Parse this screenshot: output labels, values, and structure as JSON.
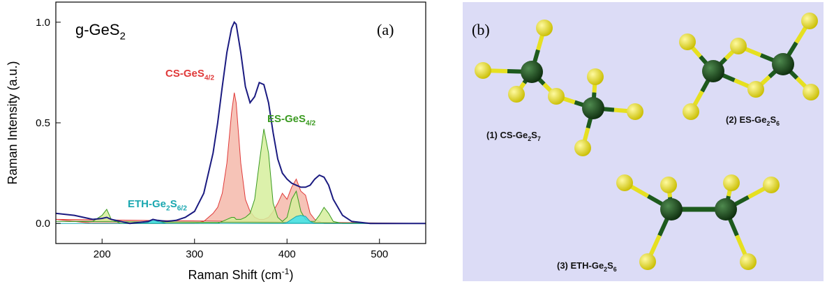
{
  "chart_data": {
    "type": "line",
    "panel_label": "(a)",
    "title": [
      "g-GeS",
      "2"
    ],
    "x_label": [
      "Raman Shift (cm",
      "-1",
      ")"
    ],
    "y_label": "Raman Intensity (a.u.)",
    "xlim": [
      150,
      550
    ],
    "xticks": [
      200,
      300,
      400,
      500
    ],
    "ylim": [
      -0.1,
      1.1
    ],
    "yticks": [
      {
        "value": 0,
        "label": "0.0"
      },
      {
        "value": 0.5,
        "label": "0.5"
      },
      {
        "value": 1,
        "label": "1.0"
      }
    ],
    "x": [
      150,
      170,
      190,
      200,
      205,
      210,
      220,
      230,
      240,
      250,
      255,
      260,
      270,
      280,
      290,
      300,
      310,
      320,
      325,
      330,
      335,
      340,
      343,
      345,
      350,
      355,
      360,
      365,
      370,
      375,
      380,
      385,
      390,
      395,
      400,
      405,
      410,
      415,
      420,
      425,
      430,
      435,
      440,
      445,
      450,
      460,
      470,
      480,
      490,
      500,
      520,
      550
    ],
    "series": [
      {
        "label": [
          "CS-GeS",
          "4/2"
        ],
        "color": "#e03a3a",
        "fill": "#f5b8aa",
        "values": [
          0.02,
          0.01,
          0,
          0,
          0,
          0,
          0,
          0,
          0,
          0,
          0,
          0,
          0,
          0,
          0,
          0,
          0.01,
          0.05,
          0.08,
          0.15,
          0.3,
          0.55,
          0.65,
          0.6,
          0.3,
          0.12,
          0.06,
          0.03,
          0.02,
          0.02,
          0.03,
          0.06,
          0.1,
          0.15,
          0.12,
          0.18,
          0.22,
          0.16,
          0.14,
          0.05,
          0.02,
          0.01,
          0,
          0,
          0,
          0,
          0,
          0,
          0,
          0,
          0,
          0
        ]
      },
      {
        "label": [
          "ES-GeS",
          "4/2"
        ],
        "color": "#3a9a20",
        "fill": "#d6ef9c",
        "values": [
          0.01,
          0.01,
          0.01,
          0.04,
          0.07,
          0.02,
          0,
          0,
          0,
          0,
          0,
          0,
          0,
          0,
          0,
          0,
          0,
          0,
          0,
          0.01,
          0.02,
          0.03,
          0.03,
          0.02,
          0.02,
          0.03,
          0.05,
          0.12,
          0.3,
          0.47,
          0.35,
          0.1,
          0.03,
          0.01,
          0.03,
          0.12,
          0.16,
          0.06,
          0.02,
          0.01,
          0.01,
          0.04,
          0.08,
          0.05,
          0.01,
          0,
          0,
          0,
          0,
          0,
          0,
          0
        ]
      },
      {
        "label": [
          "ETH-Ge",
          "2",
          "S",
          "6/2"
        ],
        "color": "#1aa7b0",
        "fill": "#3fe0ef",
        "values": [
          0,
          0,
          0,
          0,
          0,
          0,
          0,
          0,
          0,
          0.005,
          0.02,
          0.01,
          0,
          0,
          0,
          0,
          0,
          0,
          0,
          0,
          0,
          0,
          0,
          0,
          0,
          0,
          0,
          0,
          0,
          0,
          0,
          0,
          0,
          0,
          0.005,
          0.02,
          0.035,
          0.04,
          0.035,
          0.01,
          0,
          0,
          0,
          0,
          0,
          0,
          0,
          0,
          0,
          0,
          0,
          0
        ]
      },
      {
        "color": "#1a1a80",
        "values": [
          0.05,
          0.04,
          0.02,
          0.025,
          0.03,
          0.02,
          0.01,
          0,
          0.005,
          0.01,
          0.02,
          0.015,
          0.01,
          0.015,
          0.03,
          0.06,
          0.15,
          0.35,
          0.5,
          0.68,
          0.85,
          0.97,
          1.0,
          0.99,
          0.85,
          0.68,
          0.6,
          0.63,
          0.7,
          0.69,
          0.6,
          0.45,
          0.32,
          0.25,
          0.22,
          0.2,
          0.19,
          0.18,
          0.18,
          0.19,
          0.22,
          0.24,
          0.23,
          0.19,
          0.12,
          0.04,
          0.01,
          0.005,
          0,
          0,
          0,
          0
        ]
      }
    ]
  },
  "diagram": {
    "panel_label": "(b)",
    "molecules": [
      {
        "label": [
          "(1) CS-Ge",
          "2",
          "S",
          "7"
        ]
      },
      {
        "label": [
          "(2) ES-Ge",
          "2",
          "S",
          "6"
        ]
      },
      {
        "label": [
          "(3) ETH-Ge",
          "2",
          "S",
          "6"
        ]
      }
    ]
  }
}
